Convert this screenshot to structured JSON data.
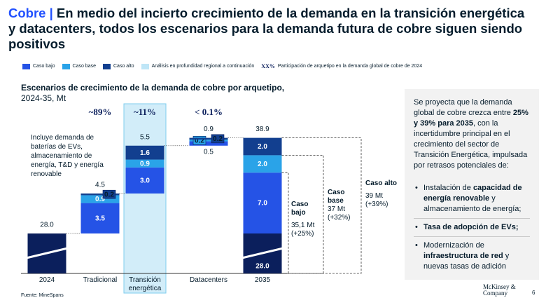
{
  "header": {
    "brand": "Cobre |",
    "title": "En medio del incierto crecimiento de la demanda en la transición energética y datacenters, todos los escenarios para la demanda futura de cobre siguen siendo positivos"
  },
  "legend": {
    "items": [
      {
        "label": "Caso bajo",
        "color": "#2553e6"
      },
      {
        "label": "Caso base",
        "color": "#2aa3e8"
      },
      {
        "label": "Caso alto",
        "color": "#123f8f"
      },
      {
        "label": "Análisis en profundidad regional a continuación",
        "color": "#bfe6f7"
      }
    ],
    "symbol": "XX%",
    "symbol_label": "Participación de arquetipo en la demanda global de cobre de 2024"
  },
  "chart_data": {
    "type": "waterfall",
    "title": "Escenarios de crecimiento de la demanda de cobre por arquetipo,",
    "subtitle": "2024-35, Mt",
    "categories": [
      "2024",
      "Tradicional",
      "Transición energética",
      "Datacenters",
      "2035"
    ],
    "shares": [
      null,
      "~89%",
      "~11%",
      "< 0.1%",
      null
    ],
    "base_values": [
      28.0,
      null,
      null,
      null,
      28.0
    ],
    "base_value_labels": [
      null,
      null,
      null,
      null,
      "28.0"
    ],
    "base_color": "#0b1f5c",
    "series": [
      {
        "name": "Caso bajo",
        "color": "#2553e6",
        "values": [
          null,
          3.5,
          3.0,
          0.5,
          7.0
        ],
        "value_labels": [
          null,
          "3.5",
          "3.0",
          "0.5",
          "7.0"
        ]
      },
      {
        "name": "Caso base",
        "color": "#2aa3e8",
        "values": [
          null,
          0.9,
          0.9,
          0.2,
          2.0
        ],
        "value_labels": [
          null,
          "0.9",
          "0.9",
          "0.2",
          "2.0"
        ]
      },
      {
        "name": "Caso alto",
        "color": "#123f8f",
        "values": [
          null,
          0.2,
          1.6,
          0.2,
          2.0
        ],
        "value_labels": [
          null,
          "0.2",
          "1.6",
          "0.2",
          "2.0"
        ]
      }
    ],
    "totals": [
      28.0,
      4.5,
      5.5,
      0.9,
      38.9
    ],
    "total_labels": [
      "28.0",
      "4.5",
      "5.5",
      "0.9",
      "38.9"
    ],
    "note": "Incluye demanda de baterías de EVs, almacenamiento de energía, T&D y energía renovable",
    "scenarios": [
      {
        "label": "Caso bajo",
        "value": "35,1 Mt",
        "change": "(+25%)"
      },
      {
        "label": "Caso base",
        "value": "37 Mt",
        "change": "(+32%)"
      },
      {
        "label": "Caso alto",
        "value": "39 Mt",
        "change": "(+39%)"
      }
    ]
  },
  "sidebar": {
    "intro": [
      {
        "text": "Se proyecta que la demanda global de cobre crezca entre ",
        "bold": false
      },
      {
        "text": "25% y 39% para 2035",
        "bold": true
      },
      {
        "text": ", con la incertidumbre principal en el crecimiento del sector de Transición Energética, impulsada por retrasos potenciales de:",
        "bold": false
      }
    ],
    "bullets": [
      [
        {
          "text": "Instalación de ",
          "bold": false
        },
        {
          "text": "capacidad de energía renovable",
          "bold": true
        },
        {
          "text": " y almacenamiento de energía;",
          "bold": false
        }
      ],
      [
        {
          "text": "Tasa de adopción de EVs;",
          "bold": true
        }
      ],
      [
        {
          "text": "Modernización de ",
          "bold": false
        },
        {
          "text": "infraestructura de red",
          "bold": true
        },
        {
          "text": " y nuevas tasas de adición",
          "bold": false
        }
      ]
    ]
  },
  "footer": {
    "source": "Fuente: MineSpans",
    "logo": "McKinsey & Company",
    "page": "6"
  }
}
